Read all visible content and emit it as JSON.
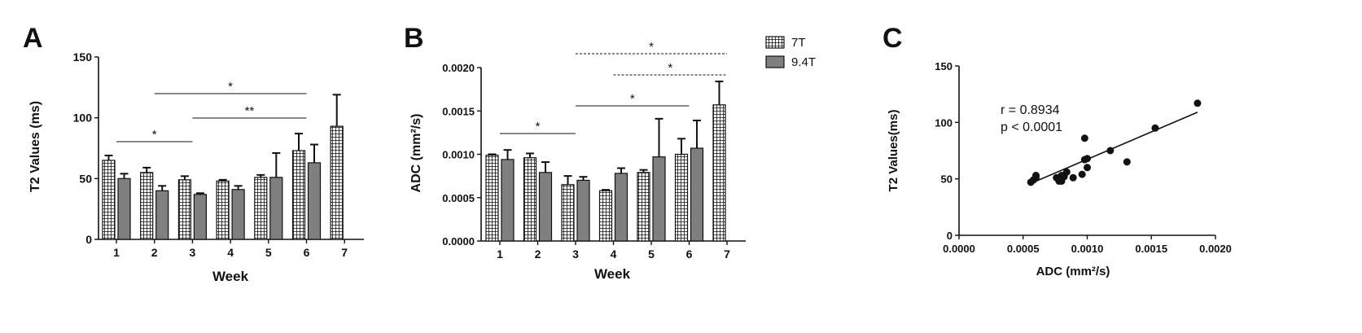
{
  "colors": {
    "gray_bar": "#7f7f7f",
    "hatch_bar": "#ffffff",
    "ink": "#111111"
  },
  "legend": {
    "items": [
      {
        "label": "7T",
        "style": "hatched"
      },
      {
        "label": "9.4T",
        "style": "gray"
      }
    ]
  },
  "chart_data": [
    {
      "panel": "A",
      "type": "bar",
      "title": "",
      "xlabel": "Week",
      "ylabel": "T2 Values (ms)",
      "ylim": [
        0,
        150
      ],
      "yticks": [
        "0",
        "50",
        "100",
        "150"
      ],
      "categories": [
        "1",
        "2",
        "3",
        "4",
        "5",
        "6",
        "7"
      ],
      "series": [
        {
          "name": "7T",
          "style": "hatched",
          "values": [
            65,
            55,
            49,
            48,
            51,
            73,
            93
          ],
          "errors": [
            4,
            4,
            3,
            1,
            2,
            14,
            26
          ]
        },
        {
          "name": "9.4T",
          "style": "gray",
          "values": [
            50,
            40,
            37,
            41,
            51,
            63,
            null
          ],
          "errors": [
            4,
            4,
            1,
            3,
            20,
            15,
            null
          ]
        }
      ],
      "significance": [
        {
          "label": "*",
          "from": "2",
          "to": "6"
        },
        {
          "label": "**",
          "from": "3",
          "to": "6"
        },
        {
          "label": "*",
          "from": "1",
          "to": "3"
        }
      ]
    },
    {
      "panel": "B",
      "type": "bar",
      "title": "",
      "xlabel": "Week",
      "ylabel": "ADC (mm²/s)",
      "ylim": [
        0,
        0.002
      ],
      "yticks": [
        "0.0000",
        "0.0005",
        "0.0010",
        "0.0015",
        "0.0020"
      ],
      "categories": [
        "1",
        "2",
        "3",
        "4",
        "5",
        "6",
        "7"
      ],
      "series": [
        {
          "name": "7T",
          "style": "hatched",
          "values": [
            0.00099,
            0.00096,
            0.00065,
            0.00058,
            0.00079,
            0.001,
            0.00157
          ],
          "errors": [
            1e-05,
            5e-05,
            0.0001,
            1e-05,
            3e-05,
            0.00018,
            0.00027
          ]
        },
        {
          "name": "9.4T",
          "style": "gray",
          "values": [
            0.00094,
            0.00079,
            0.0007,
            0.00078,
            0.00097,
            0.00107,
            null
          ],
          "errors": [
            0.00011,
            0.00012,
            4e-05,
            6e-05,
            0.00044,
            0.00032,
            null
          ]
        }
      ],
      "significance": [
        {
          "label": "*",
          "from": "3",
          "to": "7",
          "dashed": true
        },
        {
          "label": "*",
          "from": "4",
          "to": "7",
          "dashed": true
        },
        {
          "label": "*",
          "from": "3",
          "to": "6",
          "dashed": false
        },
        {
          "label": "*",
          "from": "1",
          "to": "3",
          "dashed": false
        }
      ]
    },
    {
      "panel": "C",
      "type": "scatter",
      "title": "",
      "xlabel": "ADC (mm²/s)",
      "ylabel": "T2 Values(ms)",
      "xlim": [
        0,
        0.002
      ],
      "ylim": [
        0,
        150
      ],
      "xticks": [
        "0.0000",
        "0.0005",
        "0.0010",
        "0.0015",
        "0.0020"
      ],
      "yticks": [
        "0",
        "50",
        "100",
        "150"
      ],
      "annotation": [
        "r = 0.8934",
        "p < 0.0001"
      ],
      "points": [
        [
          0.00056,
          47
        ],
        [
          0.00058,
          49
        ],
        [
          0.0006,
          51
        ],
        [
          0.0006,
          53
        ],
        [
          0.00076,
          51
        ],
        [
          0.00078,
          48
        ],
        [
          0.0008,
          48
        ],
        [
          0.0008,
          53
        ],
        [
          0.00082,
          52
        ],
        [
          0.00084,
          56
        ],
        [
          0.00089,
          51
        ],
        [
          0.00096,
          54
        ],
        [
          0.00098,
          86
        ],
        [
          0.00098,
          67
        ],
        [
          0.001,
          68
        ],
        [
          0.001,
          60
        ],
        [
          0.00118,
          75
        ],
        [
          0.00131,
          65
        ],
        [
          0.00153,
          95
        ],
        [
          0.00186,
          117
        ]
      ],
      "fit_line": {
        "x": [
          0.00056,
          0.00186
        ],
        "y": [
          46,
          109
        ]
      }
    }
  ]
}
